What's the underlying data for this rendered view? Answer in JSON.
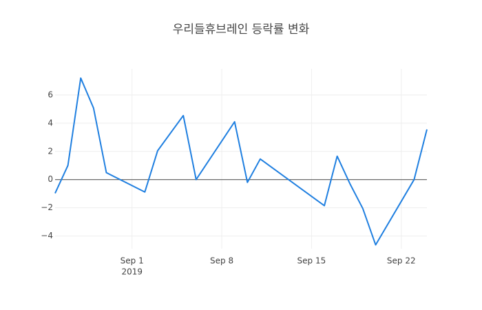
{
  "chart_data": {
    "type": "line",
    "title": "우리들휴브레인 등락률 변화",
    "x": [
      "2019-08-26",
      "2019-08-27",
      "2019-08-28",
      "2019-08-29",
      "2019-08-30",
      "2019-09-02",
      "2019-09-03",
      "2019-09-05",
      "2019-09-06",
      "2019-09-09",
      "2019-09-10",
      "2019-09-11",
      "2019-09-16",
      "2019-09-17",
      "2019-09-18",
      "2019-09-19",
      "2019-09-20",
      "2019-09-23",
      "2019-09-24"
    ],
    "series": [
      {
        "color": "#1f7fe0",
        "values": [
          -0.97,
          1.0,
          7.2,
          5.07,
          0.49,
          -0.88,
          2.05,
          4.54,
          0.0,
          4.1,
          -0.2,
          1.46,
          -1.85,
          1.66,
          -0.3,
          -2.05,
          -4.63,
          0.0,
          3.56
        ]
      }
    ],
    "xlim": [
      "2019-08-26",
      "2019-09-24"
    ],
    "xticks": [
      {
        "value": "2019-09-01",
        "label": "Sep 1"
      },
      {
        "value": "2019-09-08",
        "label": "Sep 8"
      },
      {
        "value": "2019-09-15",
        "label": "Sep 15"
      },
      {
        "value": "2019-09-22",
        "label": "Sep 22"
      }
    ],
    "x_year_label": "2019",
    "ylim": [
      -4.9,
      7.85
    ],
    "yticks": [
      {
        "value": -4,
        "label": "−4"
      },
      {
        "value": -2,
        "label": "−2"
      },
      0,
      2,
      4,
      6
    ],
    "grid": true
  }
}
